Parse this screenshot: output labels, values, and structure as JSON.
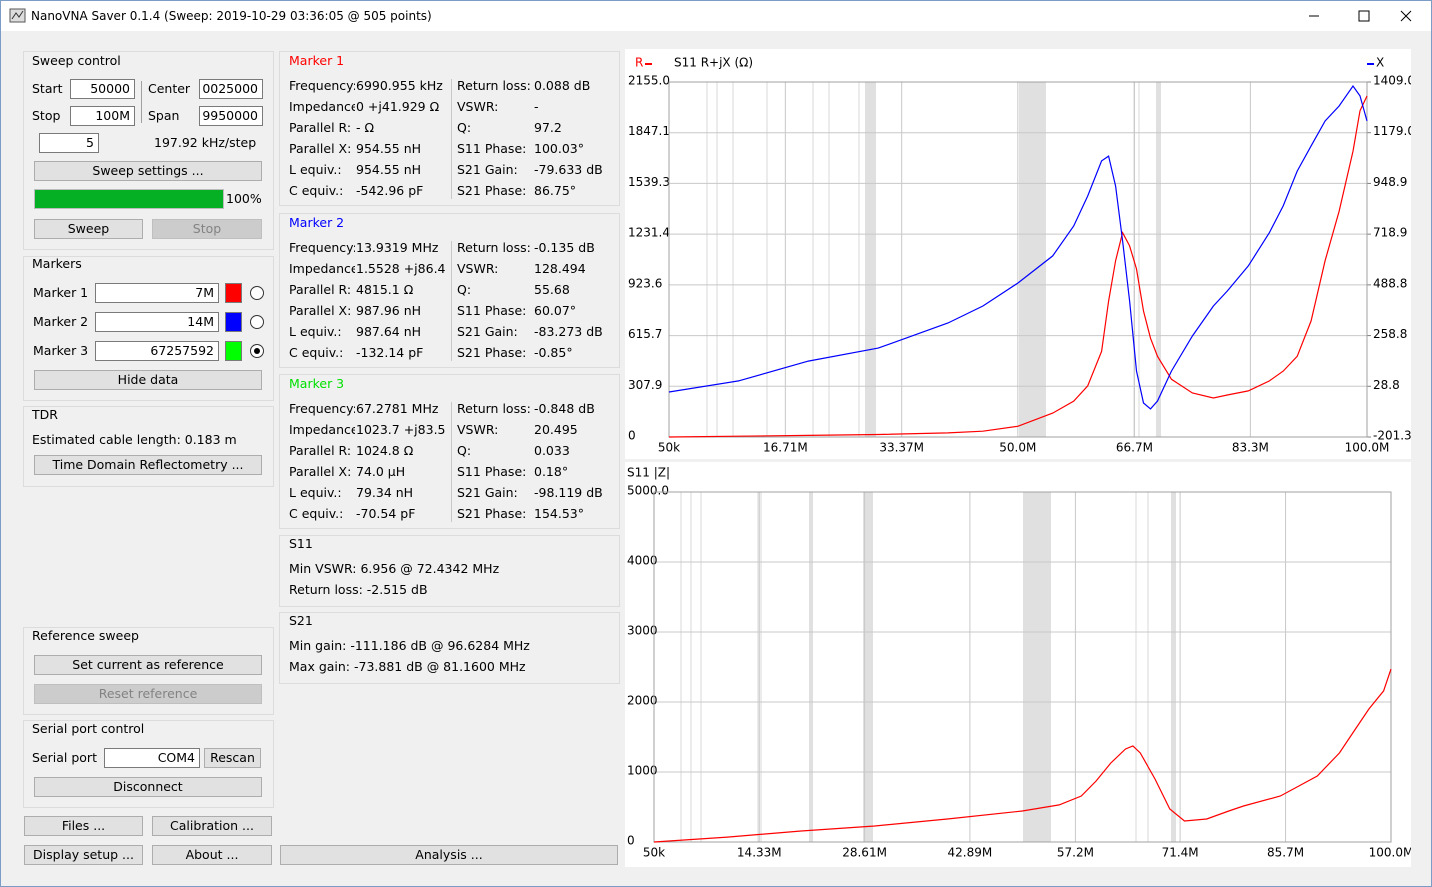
{
  "window_title": "NanoVNA Saver 0.1.4 (Sweep: 2019-10-29 03:36:05 @ 505 points)",
  "sweep_control": {
    "title": "Sweep control",
    "start_label": "Start",
    "start": "50000",
    "center_label": "Center",
    "center": "0025000",
    "stop_label": "Stop",
    "stop": "100M",
    "span_label": "Span",
    "span": "9950000",
    "segments": "5",
    "step": "197.92 kHz/step",
    "settings_button": "Sweep settings ...",
    "progress": 100,
    "progress_label": "100%",
    "sweep_button": "Sweep",
    "stop_button": "Stop"
  },
  "markers": {
    "title": "Markers",
    "items": [
      {
        "label": "Marker 1",
        "value": "7M",
        "color": "#ff0000",
        "selected": false
      },
      {
        "label": "Marker 2",
        "value": "14M",
        "color": "#0000ff",
        "selected": false
      },
      {
        "label": "Marker 3",
        "value": "67257592",
        "color": "#00ff00",
        "selected": true
      }
    ],
    "hide_button": "Hide data"
  },
  "tdr": {
    "title": "TDR",
    "cable_length": "Estimated cable length: 0.183 m",
    "button": "Time Domain Reflectometry ..."
  },
  "reference_sweep": {
    "title": "Reference sweep",
    "set_button": "Set current as reference",
    "reset_button": "Reset reference"
  },
  "serial_port": {
    "title": "Serial port control",
    "label": "Serial port",
    "port": "COM4",
    "rescan_button": "Rescan",
    "disconnect_button": "Disconnect"
  },
  "buttons": {
    "files": "Files ...",
    "calibration": "Calibration ...",
    "display_setup": "Display setup ...",
    "about": "About ...",
    "analysis": "Analysis ..."
  },
  "marker_details": [
    {
      "title": "Marker 1",
      "color": "#ff0000",
      "rows": [
        [
          "Frequency:",
          "6990.955 kHz",
          "Return loss:",
          "0.088 dB"
        ],
        [
          "Impedance:",
          "0 +j41.929 Ω",
          "VSWR:",
          "-"
        ],
        [
          "Parallel R:",
          "- Ω",
          "Q:",
          "97.2"
        ],
        [
          "Parallel X:",
          "954.55 nH",
          "S11 Phase:",
          "100.03°"
        ],
        [
          "L equiv.:",
          "954.55 nH",
          "S21 Gain:",
          "-79.633 dB"
        ],
        [
          "C equiv.:",
          "-542.96 pF",
          "S21 Phase:",
          "86.75°"
        ]
      ]
    },
    {
      "title": "Marker 2",
      "color": "#0000ff",
      "rows": [
        [
          "Frequency:",
          "13.9319 MHz",
          "Return loss:",
          "-0.135 dB"
        ],
        [
          "Impedance:",
          "1.5528 +j86.4",
          "VSWR:",
          "128.494"
        ],
        [
          "Parallel R:",
          "4815.1 Ω",
          "Q:",
          "55.68"
        ],
        [
          "Parallel X:",
          "987.96 nH",
          "S11 Phase:",
          "60.07°"
        ],
        [
          "L equiv.:",
          "987.64 nH",
          "S21 Gain:",
          "-83.273 dB"
        ],
        [
          "C equiv.:",
          "-132.14 pF",
          "S21 Phase:",
          "-0.85°"
        ]
      ]
    },
    {
      "title": "Marker 3",
      "color": "#00e000",
      "rows": [
        [
          "Frequency:",
          "67.2781 MHz",
          "Return loss:",
          "-0.848 dB"
        ],
        [
          "Impedance:",
          "1023.7 +j83.5",
          "VSWR:",
          "20.495"
        ],
        [
          "Parallel R:",
          "1024.8 Ω",
          "Q:",
          "0.033"
        ],
        [
          "Parallel X:",
          "74.0 μH",
          "S11 Phase:",
          "0.18°"
        ],
        [
          "L equiv.:",
          "79.34 nH",
          "S21 Gain:",
          "-98.119 dB"
        ],
        [
          "C equiv.:",
          "-70.54 pF",
          "S21 Phase:",
          "154.53°"
        ]
      ]
    }
  ],
  "s11_summary": {
    "title": "S11",
    "rows": [
      "Min VSWR:  6.956 @ 72.4342 MHz",
      "Return loss: -2.515 dB"
    ]
  },
  "s21_summary": {
    "title": "S21",
    "rows": [
      "Min gain:  -111.186 dB @ 96.6284 MHz",
      "Max gain: -73.881 dB @ 81.1600 MHz"
    ]
  },
  "chart_data": [
    {
      "type": "line",
      "title": "S11  R+jX (Ω)",
      "x": [
        0.05,
        10,
        20,
        30,
        40,
        45,
        50,
        55,
        58,
        60,
        62,
        63,
        64,
        65,
        66,
        67,
        68,
        69,
        70,
        72,
        75,
        78,
        80,
        83,
        86,
        88,
        90,
        92,
        94,
        96,
        98,
        99,
        100
      ],
      "xlim": [
        0.05,
        100
      ],
      "xticks": [
        {
          "value": 0.05,
          "label": "50k"
        },
        {
          "value": 16.71,
          "label": "16.71M"
        },
        {
          "value": 33.37,
          "label": "33.37M"
        },
        {
          "value": 50.0,
          "label": "50.0M"
        },
        {
          "value": 66.7,
          "label": "66.7M"
        },
        {
          "value": 83.3,
          "label": "83.3M"
        },
        {
          "value": 100,
          "label": "100.0M"
        }
      ],
      "ylim": [
        0,
        2155
      ],
      "yticks": [
        0,
        307.9,
        615.7,
        923.6,
        1231.4,
        1539.3,
        1847.1,
        {
          "value": 2155,
          "label": "2155.0"
        }
      ],
      "y2lim": [
        -201.3,
        1409
      ],
      "y2ticks": [
        -201.3,
        28.8,
        258.8,
        488.8,
        718.9,
        948.9,
        {
          "value": 1179,
          "label": "1179.0"
        },
        {
          "value": 1409,
          "label": "1409.0"
        }
      ],
      "grid": true,
      "series": [
        {
          "name": "R",
          "color": "#ff0000",
          "values": [
            0,
            5,
            10,
            15,
            25,
            35,
            65,
            145,
            218,
            310,
            520,
            825,
            1070,
            1240,
            1160,
            1020,
            765,
            600,
            490,
            350,
            267,
            237,
            255,
            280,
            340,
            400,
            490,
            705,
            1070,
            1370,
            1735,
            1980,
            2070
          ]
        },
        {
          "name": "X",
          "color": "#0000ff",
          "axis": "y2",
          "values": [
            3,
            53,
            143,
            202,
            316,
            393,
            497,
            620,
            756,
            892,
            1051,
            1073,
            937,
            688,
            416,
            98,
            -47,
            -74,
            -38,
            98,
            257,
            393,
            461,
            575,
            724,
            847,
            1005,
            1119,
            1232,
            1300,
            1391,
            1346,
            1232
          ]
        }
      ]
    },
    {
      "type": "line",
      "title": "S11  |Z|",
      "x": [
        0.05,
        10,
        20,
        30,
        40,
        50,
        55,
        58,
        60,
        62,
        64,
        65,
        66,
        68,
        70,
        72,
        75,
        78,
        80,
        85,
        90,
        93,
        95,
        97,
        99,
        100
      ],
      "xlim": [
        0.05,
        100
      ],
      "xticks": [
        {
          "value": 0.05,
          "label": "50k"
        },
        {
          "value": 14.33,
          "label": "14.33M"
        },
        {
          "value": 28.61,
          "label": "28.61M"
        },
        {
          "value": 42.89,
          "label": "42.89M"
        },
        {
          "value": 57.2,
          "label": "57.2M"
        },
        {
          "value": 71.4,
          "label": "71.4M"
        },
        {
          "value": 85.7,
          "label": "85.7M"
        },
        {
          "value": 100,
          "label": "100.0M"
        }
      ],
      "ylim": [
        0,
        5000
      ],
      "yticks": [
        0,
        1000,
        2000,
        3000,
        4000,
        {
          "value": 5000,
          "label": "5000.0"
        }
      ],
      "grid": true,
      "series": [
        {
          "color": "#ff0000",
          "values": [
            0,
            70,
            157,
            229,
            330,
            443,
            530,
            657,
            872,
            1129,
            1329,
            1372,
            1272,
            900,
            472,
            300,
            329,
            443,
            515,
            657,
            943,
            1272,
            1586,
            1900,
            2158,
            2472
          ]
        }
      ]
    }
  ]
}
